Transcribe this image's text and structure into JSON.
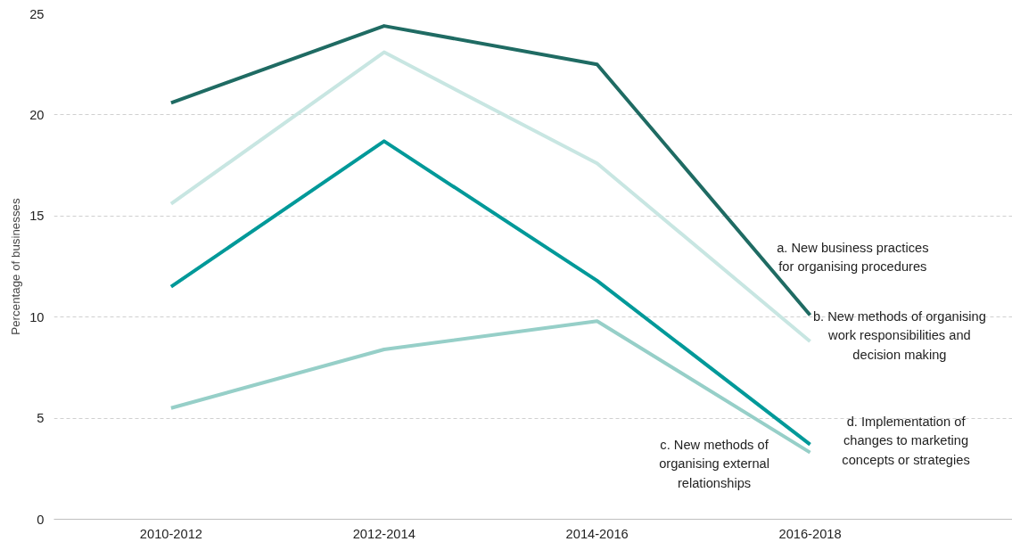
{
  "chart_data": {
    "type": "line",
    "ylabel": "Percentage of businesses",
    "categories": [
      "2010-2012",
      "2012-2014",
      "2014-2016",
      "2016-2018"
    ],
    "series": [
      {
        "name": "a. New business practices for organising procedures",
        "color": "#1f6b63",
        "values": [
          20.6,
          24.4,
          22.5,
          10.1
        ]
      },
      {
        "name": "b. New methods of organising work responsibilities and decision making",
        "color": "#c8e6e2",
        "values": [
          15.6,
          23.1,
          17.6,
          8.8
        ]
      },
      {
        "name": "c. New methods of organising external relationships",
        "color": "#96cfc8",
        "values": [
          5.5,
          8.4,
          9.8,
          3.3
        ]
      },
      {
        "name": "d. Implementation of changes to marketing concepts or strategies",
        "color": "#009999",
        "values": [
          11.5,
          18.7,
          11.8,
          3.7
        ]
      }
    ],
    "ylim": [
      0,
      25
    ],
    "yticks": [
      0,
      5,
      10,
      15,
      20,
      25
    ],
    "grid": "y",
    "marker": "none",
    "line_style": "solid"
  }
}
